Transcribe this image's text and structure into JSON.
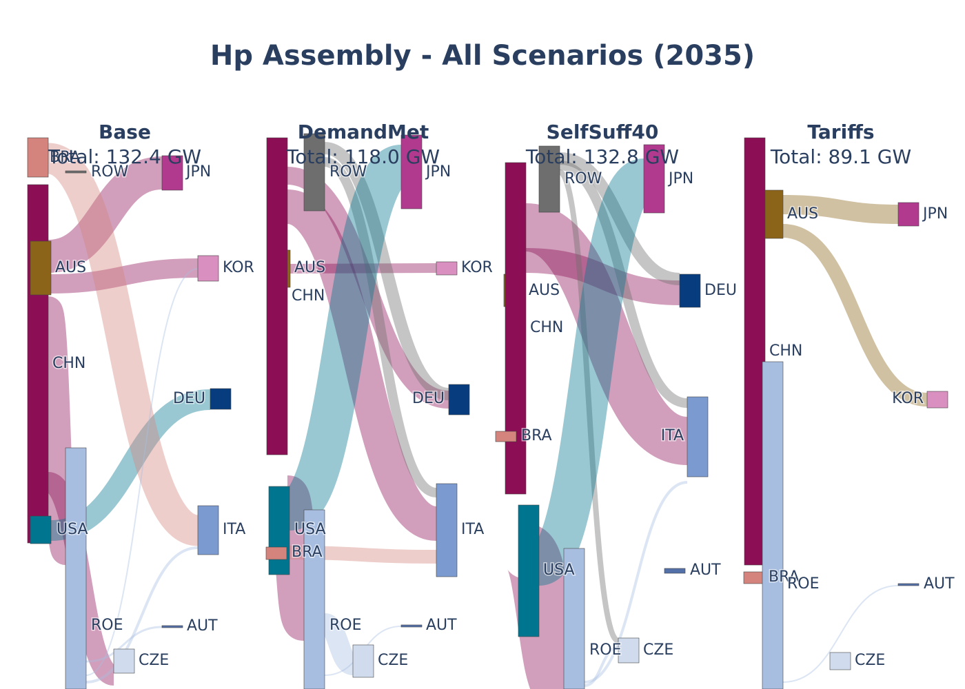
{
  "title": "Hp Assembly - All Scenarios (2035)",
  "chart_data": [
    {
      "type": "sankey",
      "panel": "Base",
      "total_label": "Total: 132.4 GW",
      "nodes": [
        {
          "id": "BRA",
          "side": "source",
          "color": "#d4847c"
        },
        {
          "id": "CHN",
          "side": "source",
          "color": "#8c0e54"
        },
        {
          "id": "AUS",
          "side": "source",
          "color": "#8b6419"
        },
        {
          "id": "USA",
          "side": "source",
          "color": "#00758f"
        },
        {
          "id": "ROE",
          "side": "mid",
          "color": "#a8bee0"
        },
        {
          "id": "ROW",
          "side": "mid",
          "color": "#6e6e6e"
        },
        {
          "id": "JPN",
          "side": "target",
          "color": "#b23a8e"
        },
        {
          "id": "KOR",
          "side": "target",
          "color": "#d98fbf"
        },
        {
          "id": "DEU",
          "side": "target",
          "color": "#073d7f"
        },
        {
          "id": "ITA",
          "side": "target",
          "color": "#7b9bd0"
        },
        {
          "id": "AUT",
          "side": "target",
          "color": "#5470a8"
        },
        {
          "id": "CZE",
          "side": "target",
          "color": "#d0dcee"
        }
      ],
      "links": [
        {
          "source": "CHN",
          "target": "JPN",
          "value": 11
        },
        {
          "source": "CHN",
          "target": "KOR",
          "value": 8
        },
        {
          "source": "CHN",
          "target": "ROE",
          "value": 60
        },
        {
          "source": "CHN",
          "target": "CZE",
          "value": 9
        },
        {
          "source": "USA",
          "target": "DEU",
          "value": 7
        },
        {
          "source": "BRA",
          "target": "ITA",
          "value": 13
        },
        {
          "source": "ROE",
          "target": "ITA",
          "value": 1
        },
        {
          "source": "ROE",
          "target": "AUT",
          "value": 0.5
        },
        {
          "source": "ROE",
          "target": "KOR",
          "value": 0.3
        }
      ]
    },
    {
      "type": "sankey",
      "panel": "DemandMet",
      "total_label": "Total: 118.0 GW",
      "nodes": [
        {
          "id": "ROW",
          "side": "mid",
          "color": "#6e6e6e"
        },
        {
          "id": "AUS",
          "side": "source",
          "color": "#8b6419"
        },
        {
          "id": "CHN",
          "side": "source",
          "color": "#8c0e54"
        },
        {
          "id": "USA",
          "side": "source",
          "color": "#00758f"
        },
        {
          "id": "BRA",
          "side": "source",
          "color": "#d4847c"
        },
        {
          "id": "ROE",
          "side": "mid",
          "color": "#a8bee0"
        },
        {
          "id": "JPN",
          "side": "target",
          "color": "#b23a8e"
        },
        {
          "id": "KOR",
          "side": "target",
          "color": "#d98fbf"
        },
        {
          "id": "DEU",
          "side": "target",
          "color": "#073d7f"
        },
        {
          "id": "ITA",
          "side": "target",
          "color": "#7b9bd0"
        },
        {
          "id": "AUT",
          "side": "target",
          "color": "#5470a8"
        },
        {
          "id": "CZE",
          "side": "target",
          "color": "#d0dcee"
        }
      ],
      "links": [
        {
          "source": "CHN",
          "target": "DEU",
          "value": 6
        },
        {
          "source": "CHN",
          "target": "ITA",
          "value": 20
        },
        {
          "source": "CHN",
          "target": "KOR",
          "value": 3
        },
        {
          "source": "CHN",
          "target": "ROE",
          "value": 15
        },
        {
          "source": "ROW",
          "target": "DEU",
          "value": 4
        },
        {
          "source": "ROW",
          "target": "ITA",
          "value": 3
        },
        {
          "source": "USA",
          "target": "JPN",
          "value": 14
        },
        {
          "source": "BRA",
          "target": "ITA",
          "value": 4
        },
        {
          "source": "ROE",
          "target": "CZE",
          "value": 6
        },
        {
          "source": "ROE",
          "target": "AUT",
          "value": 0.4
        }
      ]
    },
    {
      "type": "sankey",
      "panel": "SelfSuff40",
      "total_label": "Total: 132.8 GW",
      "nodes": [
        {
          "id": "ROW",
          "side": "mid",
          "color": "#6e6e6e"
        },
        {
          "id": "AUS",
          "side": "source",
          "color": "#8b6419"
        },
        {
          "id": "CHN",
          "side": "source",
          "color": "#8c0e54"
        },
        {
          "id": "BRA",
          "side": "source",
          "color": "#d4847c"
        },
        {
          "id": "USA",
          "side": "source",
          "color": "#00758f"
        },
        {
          "id": "ROE",
          "side": "mid",
          "color": "#a8bee0"
        },
        {
          "id": "JPN",
          "side": "target",
          "color": "#b23a8e"
        },
        {
          "id": "DEU",
          "side": "target",
          "color": "#073d7f"
        },
        {
          "id": "ITA",
          "side": "target",
          "color": "#7b9bd0"
        },
        {
          "id": "AUT",
          "side": "target",
          "color": "#5470a8"
        },
        {
          "id": "CZE",
          "side": "target",
          "color": "#d0dcee"
        }
      ],
      "links": [
        {
          "source": "CHN",
          "target": "DEU",
          "value": 6
        },
        {
          "source": "CHN",
          "target": "ITA",
          "value": 17
        },
        {
          "source": "CHN",
          "target": "ROE",
          "value": 18
        },
        {
          "source": "ROW",
          "target": "DEU",
          "value": 3
        },
        {
          "source": "ROW",
          "target": "ITA",
          "value": 2
        },
        {
          "source": "ROW",
          "target": "CZE",
          "value": 1
        },
        {
          "source": "USA",
          "target": "JPN",
          "value": 14
        },
        {
          "source": "ROE",
          "target": "ITA",
          "value": 0.5
        },
        {
          "source": "ROE",
          "target": "CZE",
          "value": 0.5
        }
      ]
    },
    {
      "type": "sankey",
      "panel": "Tariffs",
      "total_label": "Total: 89.1 GW",
      "nodes": [
        {
          "id": "AUS",
          "side": "source",
          "color": "#8b6419"
        },
        {
          "id": "CHN",
          "side": "source",
          "color": "#8c0e54"
        },
        {
          "id": "BRA",
          "side": "source",
          "color": "#d4847c"
        },
        {
          "id": "ROE",
          "side": "mid",
          "color": "#a8bee0"
        },
        {
          "id": "JPN",
          "side": "target",
          "color": "#b23a8e"
        },
        {
          "id": "KOR",
          "side": "target",
          "color": "#d98fbf"
        },
        {
          "id": "AUT",
          "side": "target",
          "color": "#5470a8"
        },
        {
          "id": "CZE",
          "side": "target",
          "color": "#d0dcee"
        }
      ],
      "links": [
        {
          "source": "AUS",
          "target": "JPN",
          "value": 6
        },
        {
          "source": "AUS",
          "target": "KOR",
          "value": 4
        },
        {
          "source": "ROE",
          "target": "AUT",
          "value": 0.3
        }
      ]
    }
  ]
}
